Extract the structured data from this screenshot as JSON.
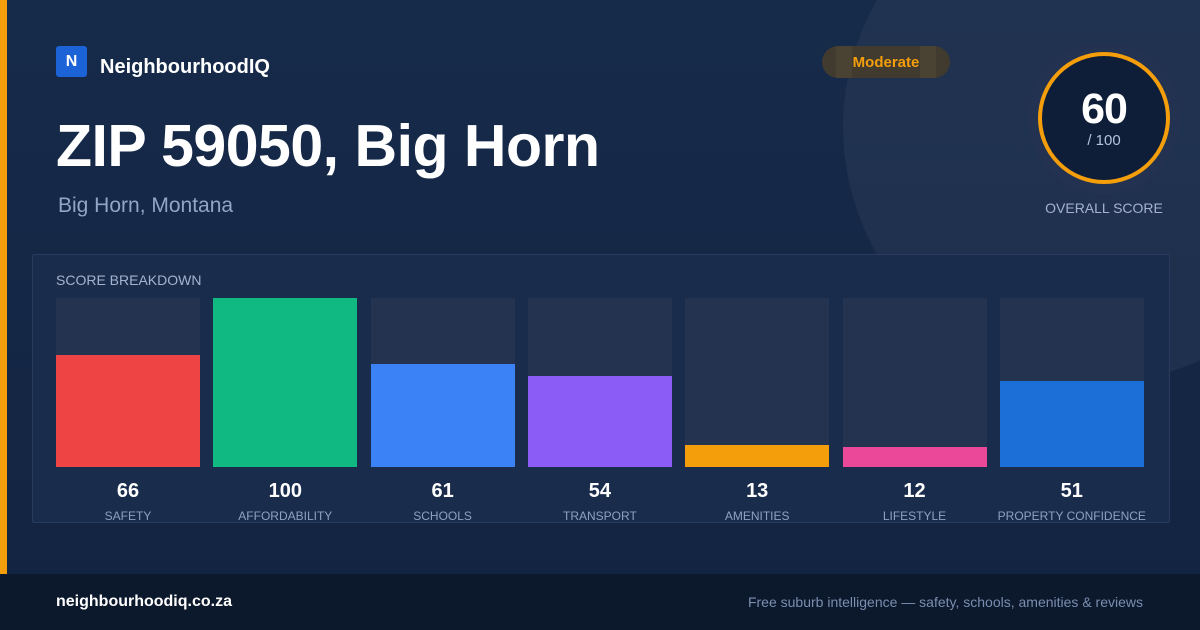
{
  "brand": {
    "logo_letter": "N",
    "name": "NeighbourhoodIQ"
  },
  "header": {
    "title": "ZIP 59050, Big Horn",
    "subtitle": "Big Horn, Montana",
    "badge": "Moderate"
  },
  "score": {
    "value": "60",
    "max": "/ 100",
    "caption": "OVERALL SCORE"
  },
  "breakdown": {
    "title": "SCORE BREAKDOWN",
    "items": [
      {
        "value": "66",
        "label": "SAFETY",
        "score": 66,
        "color": "#ef4444"
      },
      {
        "value": "100",
        "label": "AFFORDABILITY",
        "score": 100,
        "color": "#10b981"
      },
      {
        "value": "61",
        "label": "SCHOOLS",
        "score": 61,
        "color": "#3b82f6"
      },
      {
        "value": "54",
        "label": "TRANSPORT",
        "score": 54,
        "color": "#8b5cf6"
      },
      {
        "value": "13",
        "label": "AMENITIES",
        "score": 13,
        "color": "#f59e0b"
      },
      {
        "value": "12",
        "label": "LIFESTYLE",
        "score": 12,
        "color": "#ec4899"
      },
      {
        "value": "51",
        "label": "PROPERTY CONFIDENCE",
        "score": 51,
        "color": "#1d6fd8"
      }
    ]
  },
  "footer": {
    "site": "neighbourhoodiq.co.za",
    "tagline": "Free suburb intelligence — safety, schools, amenities & reviews"
  },
  "colors": {
    "accent": "#f59e0b",
    "brand_blue": "#1d63d8",
    "background": "#13213c"
  }
}
